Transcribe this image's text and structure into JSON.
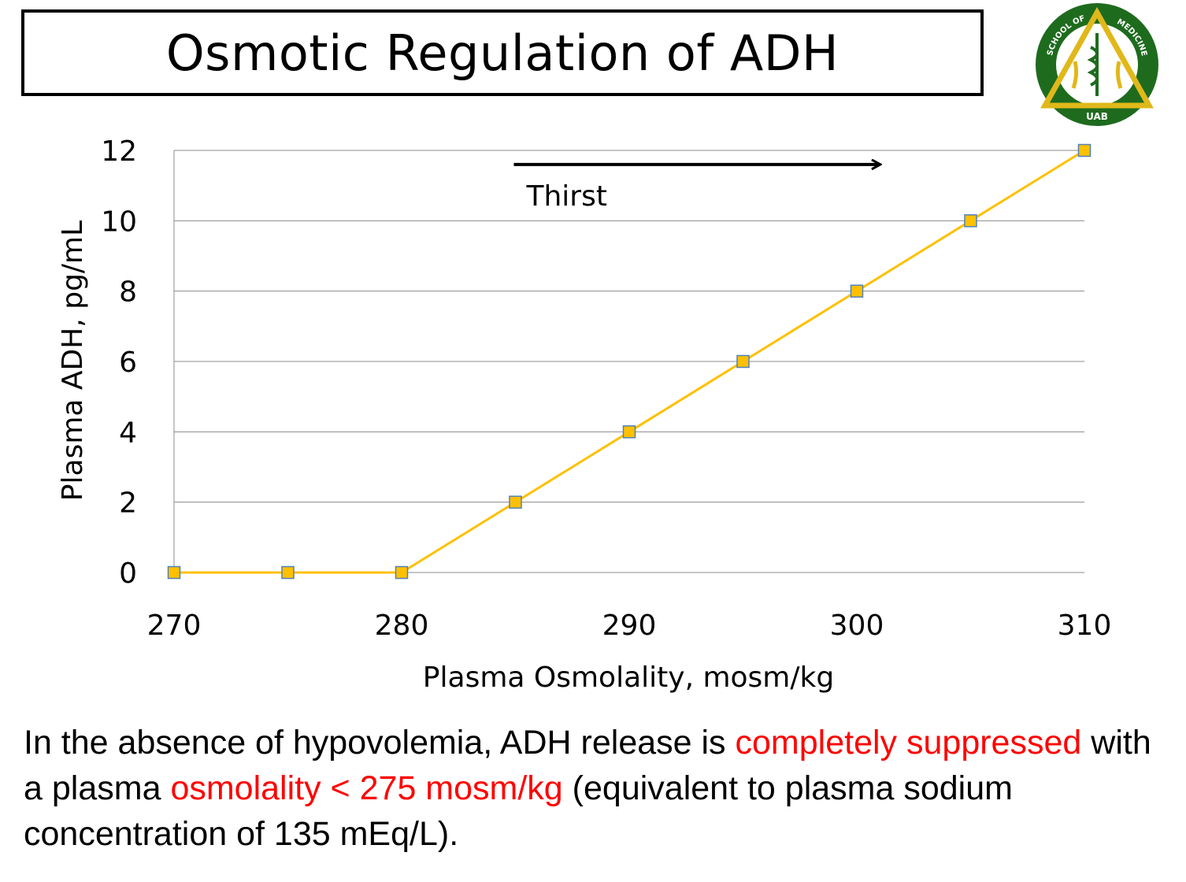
{
  "title": "Osmotic Regulation of ADH",
  "logo": {
    "ring_text_left": "SCHOOL OF",
    "ring_text_right": "MEDICINE",
    "bottom_text": "UAB",
    "colors": {
      "ring": "#1e6b1e",
      "triangle": "#e0b81a",
      "inner": "#ffffff"
    }
  },
  "chart_data": {
    "type": "line",
    "x": [
      270,
      275,
      280,
      285,
      290,
      295,
      300,
      305,
      310
    ],
    "series": [
      {
        "values": [
          0,
          0,
          0,
          2,
          4,
          6,
          8,
          10,
          12
        ]
      }
    ],
    "xlim": [
      270,
      310
    ],
    "ylim": [
      0,
      12
    ],
    "x_ticks": [
      "270",
      "280",
      "290",
      "300",
      "310"
    ],
    "y_ticks": [
      "0",
      "2",
      "4",
      "6",
      "8",
      "10",
      "12"
    ],
    "xlabel": "Plasma Osmolality, mosm/kg",
    "ylabel": "Plasma ADH, pg/mL",
    "grid": "horizontal",
    "line_color": "#ffc000",
    "marker_color": "#ffc000",
    "marker_edge_color": "#4f81bd",
    "annotation": {
      "text": "Thirst",
      "arrow_from": [
        285,
        11.6
      ],
      "arrow_to": [
        301,
        11.6
      ],
      "text_at": [
        285,
        10.7
      ]
    }
  },
  "caption": {
    "part1": "In the absence of hypovolemia, ADH release is ",
    "part2": "completely suppressed",
    "part3": " with a plasma ",
    "part4": "osmolality < 275 mosm/kg",
    "part5": " (equivalent to plasma sodium concentration of 135 mEq/L).",
    "highlight_color": "#ff0000"
  }
}
